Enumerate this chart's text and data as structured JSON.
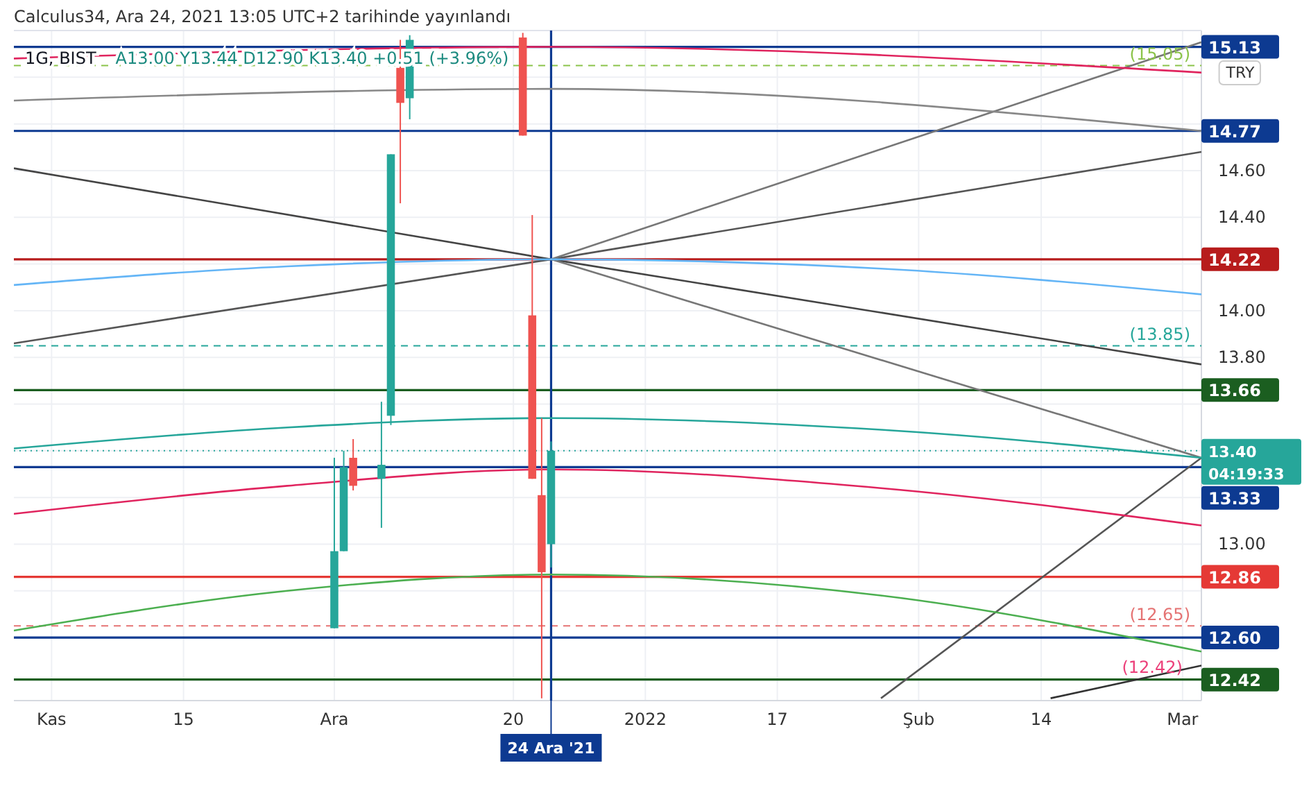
{
  "chart_data": {
    "type": "candlestick",
    "title": "1G, BIST",
    "subtitle": "A13.00 Y13.44 D12.90 K13.40 +0.51 (+3.96%)",
    "annotations": [
      "Calculus34, Ara 24, 2021 13:05 UTC+2 tarihinde yayınlandı",
      "TRY",
      {
        "text": "(12.42)",
        "x": "2022-03-01",
        "y": 12.42
      }
    ],
    "x": [
      "2021-12-01",
      "2021-12-02",
      "2021-12-03",
      "2021-12-06",
      "2021-12-07",
      "2021-12-08",
      "2021-12-09",
      "2021-12-21",
      "2021-12-22",
      "2021-12-23",
      "2021-12-24"
    ],
    "ohlc": [
      [
        12.64,
        13.37,
        12.64,
        12.97
      ],
      [
        12.97,
        13.4,
        12.97,
        13.33
      ],
      [
        13.37,
        13.45,
        13.23,
        13.25
      ],
      [
        13.28,
        13.61,
        13.07,
        13.34
      ],
      [
        13.55,
        14.67,
        13.51,
        14.67
      ],
      [
        15.04,
        15.16,
        14.46,
        14.89
      ],
      [
        14.91,
        15.18,
        14.82,
        15.16
      ],
      [
        15.17,
        15.19,
        14.75,
        14.75
      ],
      [
        13.98,
        14.41,
        13.28,
        13.28
      ],
      [
        13.21,
        13.54,
        12.34,
        12.88
      ],
      [
        13.0,
        13.44,
        12.9,
        13.4
      ]
    ],
    "colors": [
      "#26a69a",
      "#26a69a",
      "#ef5350",
      "#26a69a",
      "#26a69a",
      "#ef5350",
      "#26a69a",
      "#ef5350",
      "#ef5350",
      "#ef5350",
      "#26a69a"
    ],
    "series": [
      {
        "type": "line",
        "color": "#555555",
        "x": [
          "2021-10-28",
          "2021-12-24",
          "2022-03-03"
        ],
        "values": [
          13.86,
          14.22,
          14.68
        ]
      },
      {
        "type": "line",
        "color": "#444444",
        "x": [
          "2021-10-28",
          "2021-12-24",
          "2022-03-03"
        ],
        "values": [
          14.61,
          14.22,
          13.77
        ]
      },
      {
        "type": "line",
        "color": "#777777",
        "x": [
          "2021-12-24",
          "2022-03-03"
        ],
        "values": [
          14.22,
          15.15
        ]
      },
      {
        "type": "line",
        "color": "#777777",
        "x": [
          "2021-12-24",
          "2022-03-03"
        ],
        "values": [
          14.22,
          13.37
        ]
      },
      {
        "type": "line",
        "color": "#555555",
        "x": [
          "2022-01-28",
          "2022-03-03"
        ],
        "values": [
          12.34,
          13.37
        ]
      },
      {
        "type": "line",
        "color": "#333333",
        "x": [
          "2022-02-15",
          "2022-03-03"
        ],
        "values": [
          12.34,
          12.48
        ]
      },
      {
        "type": "line",
        "color": "#e0245e",
        "x": [
          "2021-10-28",
          "2021-11-26",
          "2021-12-24",
          "2022-01-28",
          "2022-03-03"
        ],
        "values": [
          13.13,
          13.25,
          13.32,
          13.24,
          13.08
        ]
      },
      {
        "type": "line",
        "color": "#e0245e",
        "x": [
          "2021-10-28",
          "2021-12-24",
          "2022-03-03"
        ],
        "values": [
          15.08,
          15.13,
          15.02
        ]
      },
      {
        "type": "line",
        "color": "#888888",
        "x": [
          "2021-10-28",
          "2021-12-24",
          "2022-03-03"
        ],
        "values": [
          14.9,
          14.95,
          14.77
        ]
      },
      {
        "type": "line",
        "color": "#64b5f6",
        "x": [
          "2021-10-28",
          "2021-11-26",
          "2021-12-24",
          "2022-01-28",
          "2022-03-03"
        ],
        "values": [
          14.11,
          14.19,
          14.22,
          14.18,
          14.07
        ]
      },
      {
        "type": "line",
        "color": "#26a69a",
        "x": [
          "2021-10-28",
          "2021-11-26",
          "2021-12-24",
          "2022-01-28",
          "2022-03-03"
        ],
        "values": [
          13.41,
          13.5,
          13.54,
          13.49,
          13.37
        ]
      },
      {
        "type": "line",
        "color": "#4caf50",
        "x": [
          "2021-10-28",
          "2021-11-26",
          "2021-12-24",
          "2022-01-28",
          "2022-03-03"
        ],
        "values": [
          12.63,
          12.8,
          12.87,
          12.78,
          12.54
        ]
      }
    ],
    "xlim": [
      "2021-10-28",
      "2022-03-03"
    ],
    "xticks": [
      {
        "value": "2021-11-01",
        "label": "Kas"
      },
      {
        "value": "2021-11-15",
        "label": "15"
      },
      {
        "value": "2021-12-01",
        "label": "Ara"
      },
      {
        "value": "2021-12-20",
        "label": "20"
      },
      {
        "value": "2022-01-03",
        "label": "2022"
      },
      {
        "value": "2022-01-17",
        "label": "17"
      },
      {
        "value": "2022-02-01",
        "label": "Şub"
      },
      {
        "value": "2022-02-14",
        "label": "14"
      },
      {
        "value": "2022-03-01",
        "label": "Mar"
      }
    ],
    "ylim": [
      12.33,
      15.2
    ],
    "yticks": [
      {
        "value": 12.8,
        "label": null
      },
      {
        "value": 13,
        "label": "13.00"
      },
      {
        "value": 13.2,
        "label": null
      },
      {
        "value": 13.4,
        "label": null
      },
      {
        "value": 13.6,
        "label": null
      },
      {
        "value": 13.8,
        "label": "13.80"
      },
      {
        "value": 14,
        "label": "14.00"
      },
      {
        "value": 14.2,
        "label": null
      },
      {
        "value": 14.4,
        "label": "14.40"
      },
      {
        "value": 14.6,
        "label": "14.60"
      },
      {
        "value": 14.8,
        "label": null
      },
      {
        "value": 15,
        "label": null
      }
    ],
    "grid": true,
    "ref_lines": [
      {
        "axis": "y",
        "value": 15.13,
        "label": "15.13",
        "color": "#0d3a91",
        "line_style": "solid"
      },
      {
        "axis": "y",
        "value": 15.05,
        "label": "(15.05)",
        "color": "#8bc34a",
        "line_style": "dashed"
      },
      {
        "axis": "y",
        "value": 14.77,
        "label": "14.77",
        "color": "#0d3a91",
        "line_style": "solid"
      },
      {
        "axis": "y",
        "value": 14.22,
        "label": "14.22",
        "color": "#b71c1c",
        "line_style": "solid"
      },
      {
        "axis": "y",
        "value": 13.85,
        "label": "(13.85)",
        "color": "#26a69a",
        "line_style": "dashed"
      },
      {
        "axis": "y",
        "value": 13.66,
        "label": "13.66",
        "color": "#1b5e20",
        "line_style": "solid"
      },
      {
        "axis": "y",
        "value": 13.4,
        "label": "13.40 04:19:33",
        "color": "#26a69a",
        "line_style": "dotted"
      },
      {
        "axis": "y",
        "value": 13.33,
        "label": "13.33",
        "color": "#0d3a91",
        "line_style": "solid"
      },
      {
        "axis": "y",
        "value": 12.86,
        "label": "12.86",
        "color": "#e53935",
        "line_style": "solid"
      },
      {
        "axis": "y",
        "value": 12.65,
        "label": "(12.65)",
        "color": "#e57373",
        "line_style": "dashed"
      },
      {
        "axis": "y",
        "value": 12.6,
        "label": "12.60",
        "color": "#0d3a91",
        "line_style": "solid"
      },
      {
        "axis": "y",
        "value": 12.42,
        "label": "12.42",
        "color": "#1b5e20",
        "line_style": "solid"
      },
      {
        "axis": "x",
        "value": "2021-12-24",
        "label": "24 Ara '21",
        "color": "#0d3a91",
        "line_style": "solid"
      }
    ]
  }
}
